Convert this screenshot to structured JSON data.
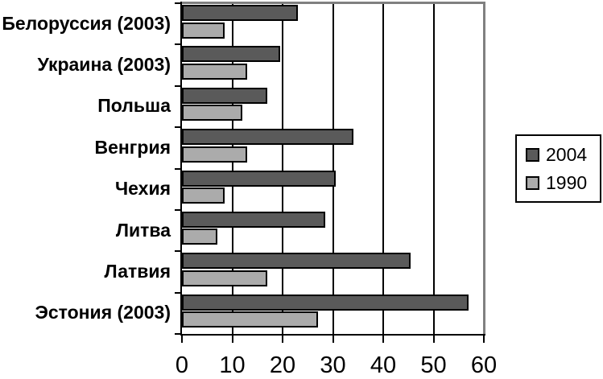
{
  "chart_data": {
    "type": "bar",
    "orientation": "horizontal",
    "title": "",
    "xlabel": "",
    "ylabel": "",
    "grid": true,
    "legend_position": "right",
    "categories": [
      "Белоруссия (2003)",
      "Украина (2003)",
      "Польша",
      "Венгрия",
      "Чехия",
      "Литва",
      "Латвия",
      "Эстония (2003)"
    ],
    "series": [
      {
        "name": "2004",
        "color": "#5A5A5A",
        "values": [
          23,
          19.5,
          17,
          34,
          30.5,
          28.5,
          45.5,
          57
        ]
      },
      {
        "name": "1990",
        "color": "#ABABAB",
        "values": [
          8.5,
          13,
          12,
          13,
          8.5,
          7,
          17,
          27
        ]
      }
    ],
    "xlim": [
      0,
      60
    ],
    "x_ticks": [
      0,
      10,
      20,
      30,
      40,
      50,
      60
    ],
    "x_tick_labels": [
      "0",
      "10",
      "20",
      "30",
      "40",
      "50",
      "60"
    ],
    "gridlines": [
      10,
      20,
      30,
      40,
      50
    ]
  },
  "legend": {
    "items": [
      {
        "label": "2004",
        "color": "#5A5A5A"
      },
      {
        "label": "1990",
        "color": "#ABABAB"
      }
    ]
  },
  "colors": {
    "bar_2004": "#5A5A5A",
    "bar_1990": "#ABABAB",
    "bar_border": "#000000",
    "axis": "#000000",
    "gridline": "#000000",
    "plot_border": "#808080",
    "background": "#FFFFFF",
    "text": "#000000"
  }
}
